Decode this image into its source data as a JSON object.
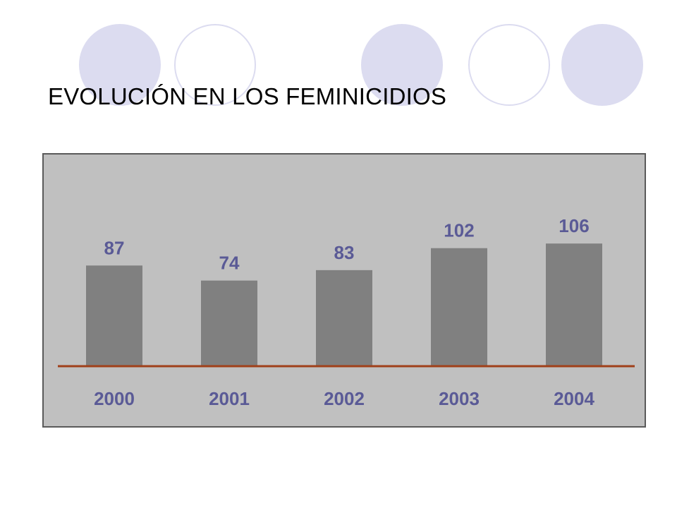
{
  "slide": {
    "title": "EVOLUCIÓN EN LOS FEMINICIDIOS"
  },
  "decorations": {
    "circle_fill_color": "#dcdcf0",
    "pattern": [
      "filled",
      "outline",
      "filled",
      "outline",
      "filled"
    ]
  },
  "chart_data": {
    "type": "bar",
    "title": "",
    "xlabel": "",
    "ylabel": "",
    "categories": [
      "2000",
      "2001",
      "2002",
      "2003",
      "2004"
    ],
    "values": [
      87,
      74,
      83,
      102,
      106
    ],
    "data_labels": [
      "87",
      "74",
      "83",
      "102",
      "106"
    ],
    "ylim": [
      0,
      110
    ],
    "grid": false,
    "legend": "none",
    "colors": {
      "bar": "#808080",
      "baseline": "#a0401a",
      "label_text": "#5a5a96",
      "plot_background": "#c0c0c0"
    }
  }
}
